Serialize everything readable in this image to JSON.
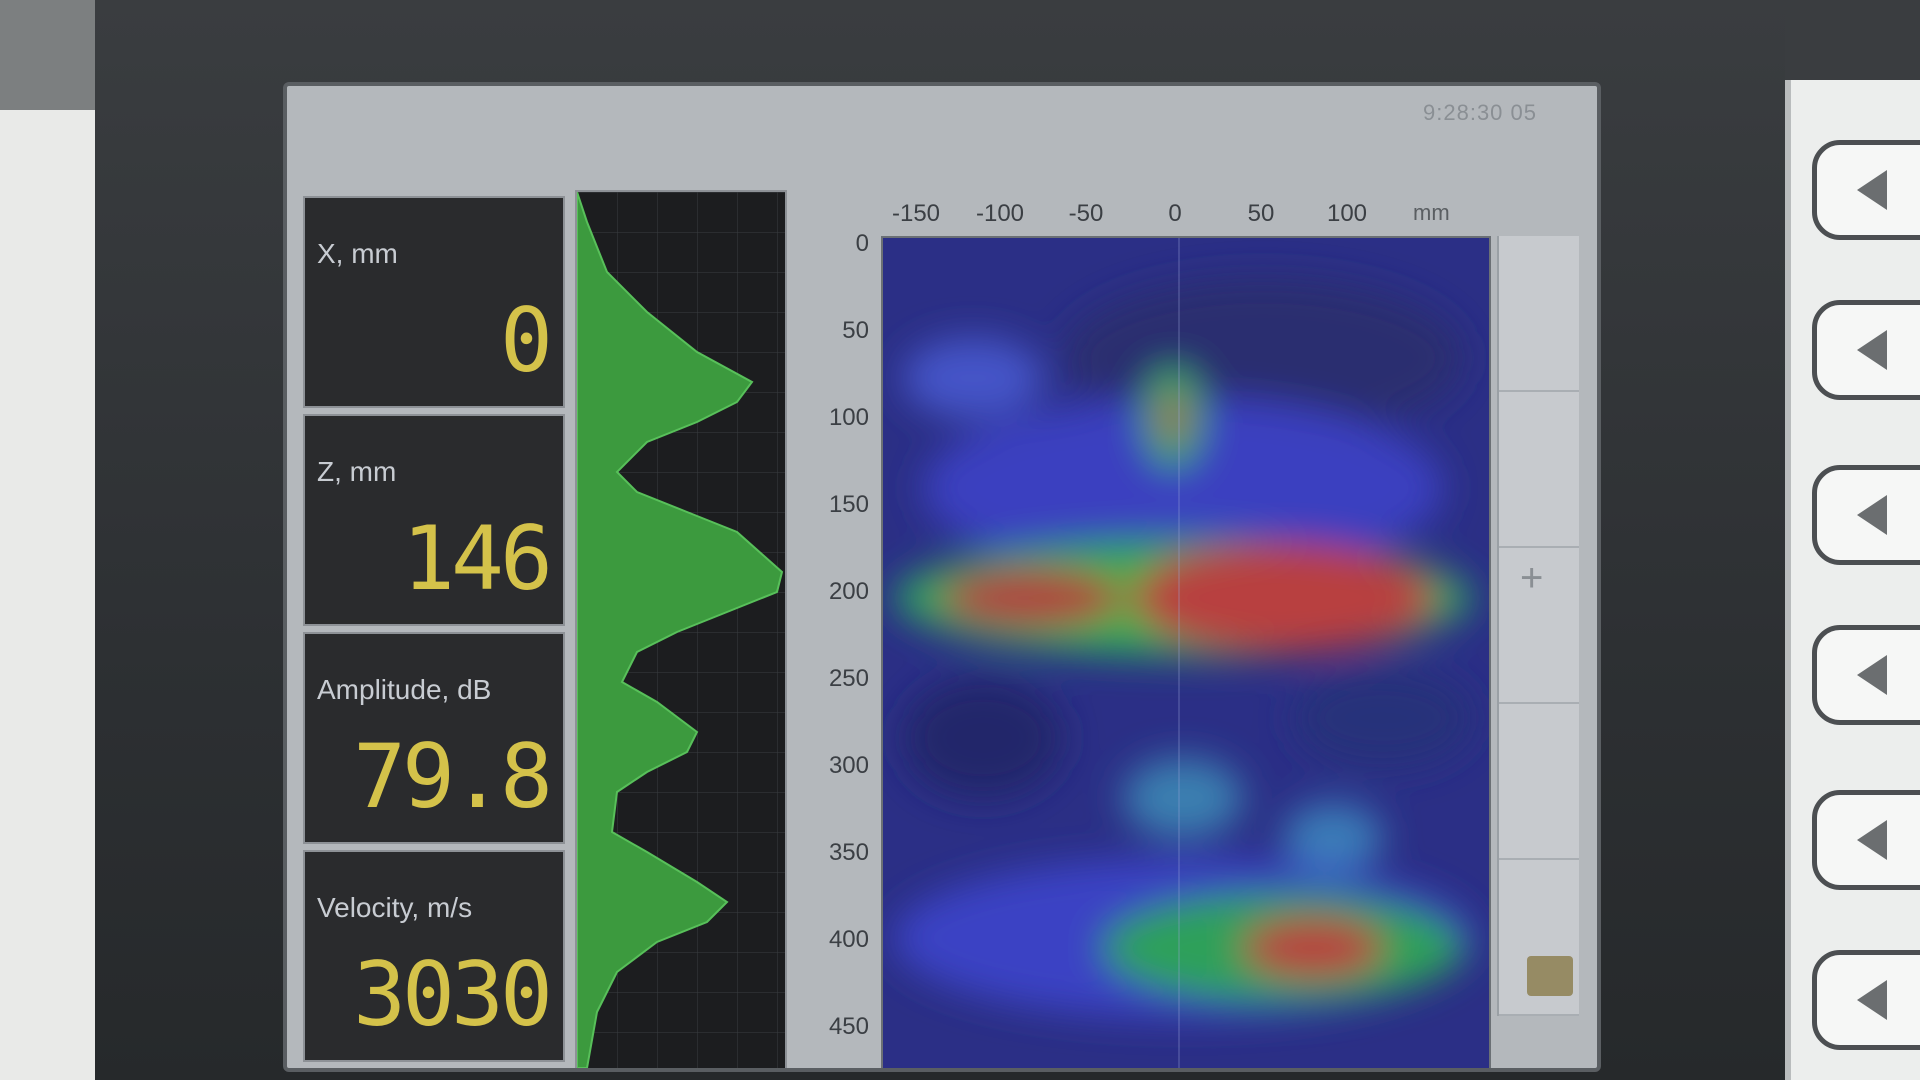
{
  "clock": "9:28:30 05",
  "readouts": [
    {
      "label": "X, mm",
      "value": "0"
    },
    {
      "label": "Z, mm",
      "value": "146"
    },
    {
      "label": "Amplitude, dB",
      "value": "79.8"
    },
    {
      "label": "Velocity, m/s",
      "value": "3030"
    }
  ],
  "bscan": {
    "x_ticks": [
      "-150",
      "-100",
      "-50",
      "0",
      "50",
      "100"
    ],
    "x_unit": "mm",
    "y_ticks": [
      "0",
      "50",
      "100",
      "150",
      "200",
      "250",
      "300",
      "350",
      "400",
      "450"
    ],
    "y_unit": "mm"
  },
  "icons": {
    "softkey": "left-triangle-icon",
    "folder": "folder-icon",
    "plus": "plus-icon"
  }
}
